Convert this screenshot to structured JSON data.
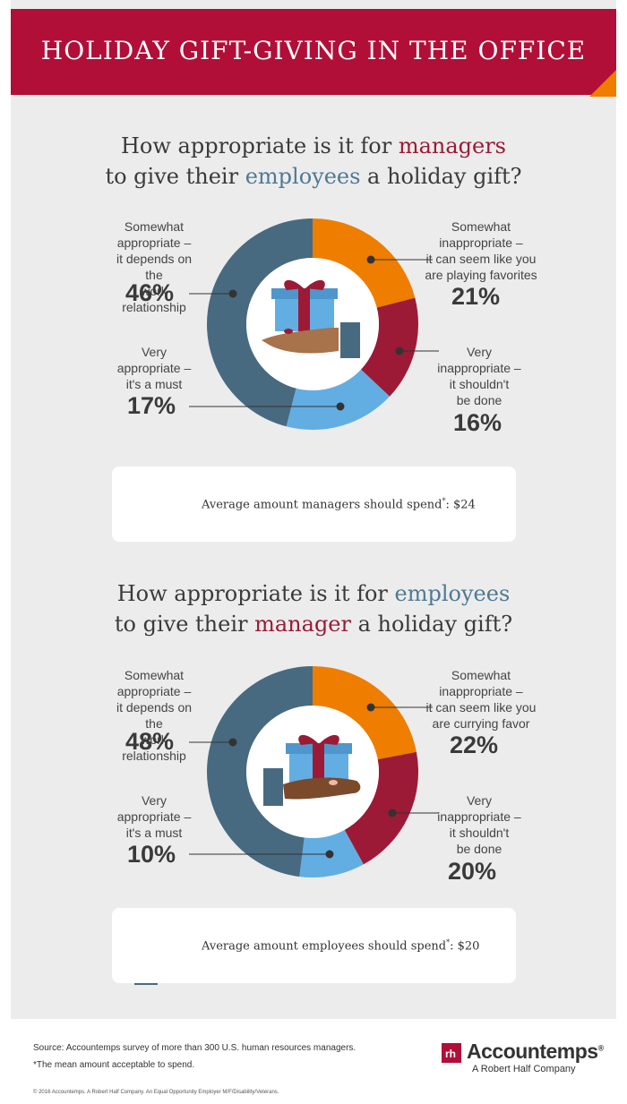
{
  "title": "HOLIDAY GIFT-GIVING IN THE OFFICE",
  "colors": {
    "banner": "#b10f38",
    "fold": "#ee7d00",
    "somewhat_appropriate": "#486a80",
    "somewhat_inappropriate": "#ee7d00",
    "very_inappropriate": "#9c1a36",
    "very_appropriate": "#62aee3"
  },
  "question1": {
    "part1": "How appropriate is it for ",
    "highlight1": "managers",
    "part2": "to give their ",
    "highlight2": "employees",
    "part3": " a holiday gift?"
  },
  "question2": {
    "part1": "How appropriate is it for ",
    "highlight1": "employees",
    "part2": "to give their ",
    "highlight2": "manager",
    "part3": " a holiday gift?"
  },
  "chart_data": [
    {
      "type": "pie",
      "title": "How appropriate is it for managers to give their employees a holiday gift?",
      "categories": [
        "Somewhat inappropriate – it can seem like you are playing favorites",
        "Very inappropriate – it shouldn't be done",
        "Very appropriate – it's a must",
        "Somewhat appropriate – it depends on the work relationship"
      ],
      "values": [
        21,
        16,
        17,
        46
      ],
      "unit": "%",
      "labels": {
        "somewhat_appropriate": [
          "Somewhat",
          "appropriate –",
          "it depends on the",
          "work relationship"
        ],
        "somewhat_inappropriate": [
          "Somewhat",
          "inappropriate –",
          "it can seem like you",
          "are playing favorites"
        ],
        "very_appropriate": [
          "Very",
          "appropriate –",
          "it's a must"
        ],
        "very_inappropriate": [
          "Very",
          "inappropriate –",
          "it shouldn't",
          "be done"
        ]
      },
      "value_labels": {
        "somewhat_appropriate": "46%",
        "somewhat_inappropriate": "21%",
        "very_appropriate": "17%",
        "very_inappropriate": "16%"
      }
    },
    {
      "type": "pie",
      "title": "How appropriate is it for employees to give their manager a holiday gift?",
      "categories": [
        "Somewhat inappropriate – it can seem like you are currying favor",
        "Very inappropriate – it shouldn't be done",
        "Very appropriate – it's a must",
        "Somewhat appropriate – it depends on the work relationship"
      ],
      "values": [
        22,
        20,
        10,
        48
      ],
      "unit": "%",
      "labels": {
        "somewhat_appropriate": [
          "Somewhat",
          "appropriate –",
          "it depends on the",
          "work relationship"
        ],
        "somewhat_inappropriate": [
          "Somewhat",
          "inappropriate –",
          "it can seem like you",
          "are currying favor"
        ],
        "very_appropriate": [
          "Very",
          "appropriate –",
          "it's a must"
        ],
        "very_inappropriate": [
          "Very",
          "inappropriate –",
          "it shouldn't",
          "be done"
        ]
      },
      "value_labels": {
        "somewhat_appropriate": "48%",
        "somewhat_inappropriate": "22%",
        "very_appropriate": "10%",
        "very_inappropriate": "20%"
      }
    }
  ],
  "card1": {
    "text": "Average amount managers should spend",
    "mark": "*",
    "suffix": ": $24"
  },
  "card2": {
    "text": "Average amount employees should spend",
    "mark": "*",
    "suffix": ": $20"
  },
  "footer": {
    "source": "Source: Accountemps survey of more than 300 U.S. human resources managers.",
    "note": "*The mean amount acceptable to spend.",
    "copyright": "© 2016 Accountemps. A Robert Half Company. An Equal Opportunity Employer M/F/Disability/Veterans.",
    "logo_mark": "rh",
    "logo_name": "Accountemps",
    "logo_registered": "®",
    "logo_sub": "A Robert Half Company"
  },
  "icons": [
    "gift-icon",
    "hand-icon",
    "credit-card-icon"
  ]
}
